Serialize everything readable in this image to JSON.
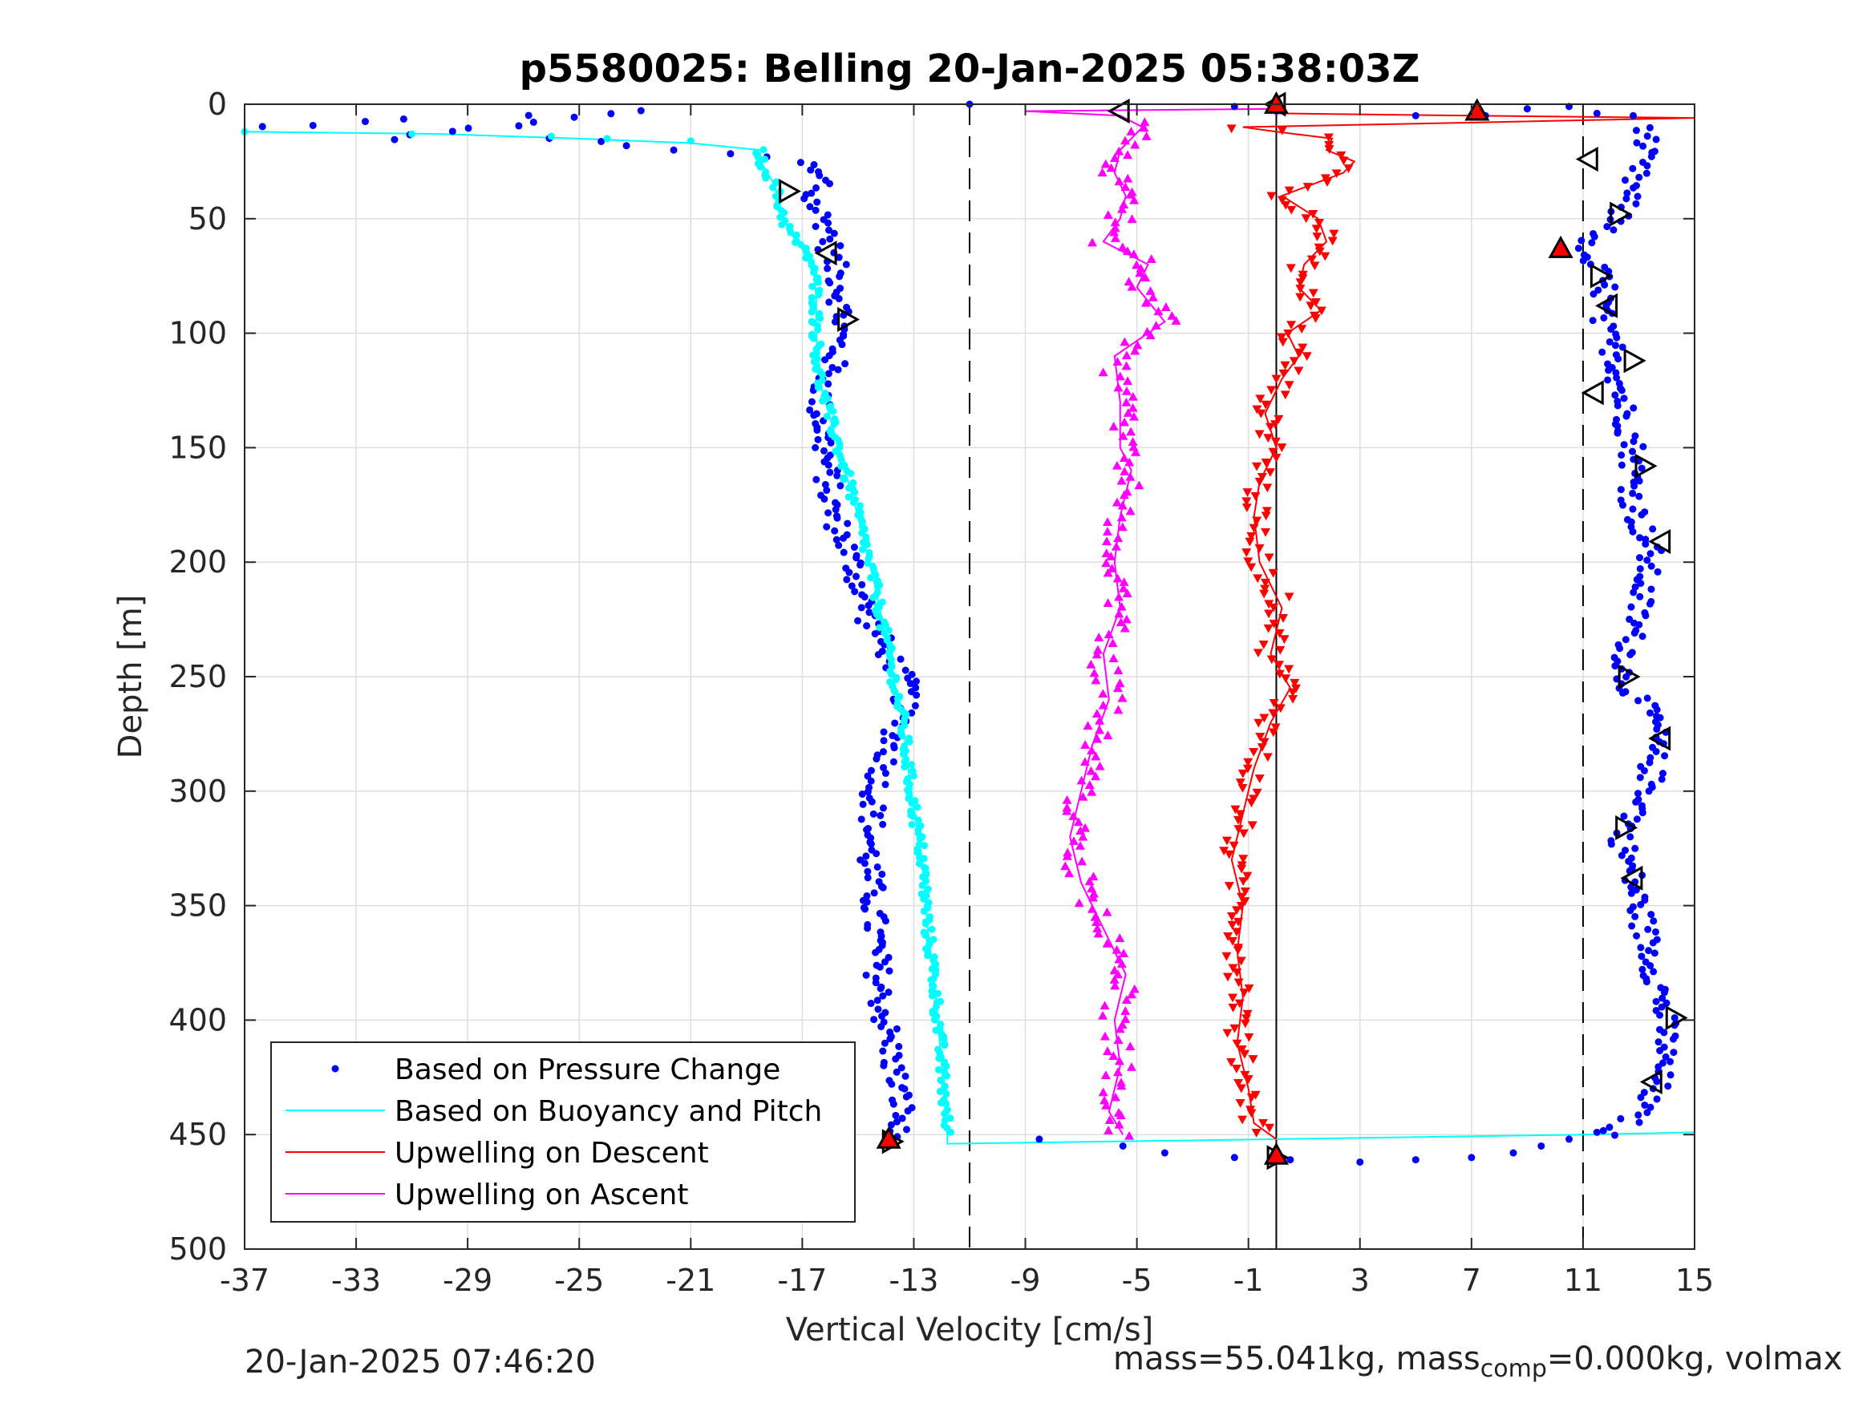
{
  "chart_data": {
    "type": "scatter",
    "title": "p5580025: Belling 20-Jan-2025 05:38:03Z",
    "xlabel": "Vertical Velocity [cm/s]",
    "ylabel": "Depth [m]",
    "xlim": [
      -37,
      15
    ],
    "ylim": [
      500,
      0
    ],
    "y_reversed": true,
    "grid": true,
    "x_ticks": [
      -37,
      -33,
      -29,
      -25,
      -21,
      -17,
      -13,
      -9,
      -5,
      -1,
      3,
      7,
      11,
      15
    ],
    "y_ticks": [
      0,
      50,
      100,
      150,
      200,
      250,
      300,
      350,
      400,
      450,
      500
    ],
    "legend_location": "bottom-left",
    "legend": [
      {
        "label": "Based on Pressure Change",
        "color": "#0000ff",
        "marker": "dot"
      },
      {
        "label": "Based on Buoyancy and Pitch",
        "color": "#00ffff",
        "marker": "line"
      },
      {
        "label": "Upwelling on Descent",
        "color": "#ff0000",
        "marker": "line"
      },
      {
        "label": "Upwelling on Ascent",
        "color": "#ff00ff",
        "marker": "line"
      }
    ],
    "reference_lines": [
      {
        "x": -11,
        "style": "dashed"
      },
      {
        "x": 11,
        "style": "dashed"
      },
      {
        "x": 0,
        "style": "solid"
      }
    ],
    "series": [
      {
        "name": "Based on Pressure Change",
        "color": "#0000ff",
        "profiles": [
          {
            "depth": [
              10,
              6,
              3,
              15,
              15,
              25,
              35,
              40,
              55,
              65,
              80,
              95,
              110,
              130,
              150,
              175,
              200,
              225,
              255,
              280,
              300,
              330,
              360,
              390,
              415,
              440,
              452
            ],
            "velocity": [
              -36.5,
              -31,
              -23,
              -32,
              -26,
              -17,
              -16.2,
              -16.8,
              -16,
              -16,
              -15.6,
              -15.6,
              -15.8,
              -16.4,
              -16.2,
              -16,
              -15.2,
              -14.6,
              -13.2,
              -13.8,
              -14.4,
              -14.6,
              -14.4,
              -14.2,
              -13.8,
              -13.4,
              -13.8
            ]
          },
          {
            "depth": [
              452,
              455,
              458,
              460,
              461,
              462,
              461,
              460,
              458,
              455,
              452,
              449
            ],
            "velocity": [
              -8.5,
              -5.5,
              -4,
              -1.5,
              0.5,
              3,
              5,
              7,
              8.5,
              9.5,
              10.5,
              11.5
            ]
          },
          {
            "depth": [
              0,
              1,
              3,
              5,
              5,
              2,
              1,
              4,
              5
            ],
            "velocity": [
              -11,
              -1.5,
              0,
              5,
              7.5,
              9,
              10.5,
              11.5,
              12.8
            ]
          },
          {
            "depth": [
              10,
              25,
              40,
              55,
              64,
              70,
              80,
              95,
              110,
              130,
              150,
              175,
              195,
              220,
              250,
              270,
              300,
              320,
              340,
              360,
              390,
              410,
              430,
              445,
              452
            ],
            "velocity": [
              13.4,
              13,
              12.6,
              12,
              10.4,
              11.4,
              11.8,
              11.6,
              12.2,
              12.4,
              12.8,
              12.8,
              13.4,
              13,
              12.4,
              13.6,
              13.4,
              12.4,
              12.8,
              13.2,
              13.8,
              14,
              13.6,
              12.6,
              11.5
            ]
          }
        ]
      },
      {
        "name": "Based on Buoyancy and Pitch",
        "color": "#00ffff",
        "depth": [
          12,
          13,
          15,
          17,
          20,
          25,
          35,
          45,
          55,
          70,
          85,
          100,
          120,
          150,
          180,
          210,
          240,
          270,
          300,
          330,
          360,
          390,
          420,
          450,
          454,
          452,
          450,
          449
        ],
        "velocity": [
          -37,
          -30,
          -25,
          -21,
          -18.5,
          -18.5,
          -18,
          -17.8,
          -17.5,
          -16.6,
          -16.5,
          -16.5,
          -16.4,
          -15.7,
          -15,
          -14.4,
          -13.9,
          -13.4,
          -13.1,
          -12.7,
          -12.5,
          -12.2,
          -12,
          -11.8,
          -11.8,
          0,
          11,
          15
        ]
      },
      {
        "name": "Upwelling on Descent",
        "color": "#ff0000",
        "depth": [
          4,
          5,
          6,
          8,
          10,
          12,
          15,
          20,
          25,
          30,
          40,
          50,
          60,
          70,
          80,
          90,
          100,
          110,
          120,
          135,
          150,
          165,
          180,
          200,
          220,
          240,
          255,
          270,
          290,
          310,
          330,
          350,
          370,
          390,
          410,
          430,
          445,
          452
        ],
        "velocity": [
          0,
          7,
          15,
          7,
          -1.2,
          0,
          2,
          1.8,
          2.8,
          2.4,
          0.2,
          1.5,
          1.8,
          1,
          0.8,
          1.6,
          0.4,
          0.8,
          0.2,
          -0.4,
          0,
          -0.6,
          -0.8,
          -0.6,
          0.2,
          -0.2,
          0.5,
          -0.2,
          -0.8,
          -1.2,
          -1.6,
          -1.2,
          -1.4,
          -1.2,
          -1.4,
          -1,
          -0.8,
          0
        ]
      },
      {
        "name": "Upwelling on Ascent",
        "color": "#ff00ff",
        "depth": [
          450,
          440,
          420,
          400,
          380,
          360,
          340,
          320,
          300,
          280,
          260,
          240,
          220,
          200,
          180,
          160,
          150,
          130,
          110,
          95,
          80,
          70,
          60,
          50,
          40,
          30,
          20,
          10,
          5,
          3,
          2
        ],
        "velocity": [
          -5.5,
          -6,
          -5.6,
          -5.8,
          -5.4,
          -6.2,
          -7,
          -7.4,
          -7,
          -6.6,
          -6,
          -6.2,
          -5.6,
          -5.8,
          -5.6,
          -5.2,
          -5.6,
          -5.6,
          -5.8,
          -4,
          -5,
          -4.6,
          -6.2,
          -5.6,
          -5.4,
          -5.8,
          -5.6,
          -4.8,
          -5.6,
          -9,
          0
        ]
      },
      {
        "name": "",
        "color": "#000000",
        "marker": "open-triangle",
        "points": [
          {
            "v": -5.6,
            "d": 3,
            "dir": "left"
          },
          {
            "v": 0,
            "d": 0,
            "dir": "left"
          },
          {
            "v": -17.5,
            "d": 38,
            "dir": "right"
          },
          {
            "v": -16.1,
            "d": 65,
            "dir": "left"
          },
          {
            "v": -15.4,
            "d": 94,
            "dir": "right"
          },
          {
            "v": 11.2,
            "d": 24,
            "dir": "left"
          },
          {
            "v": 12.3,
            "d": 48,
            "dir": "right"
          },
          {
            "v": 11.6,
            "d": 75,
            "dir": "right"
          },
          {
            "v": 11.9,
            "d": 88,
            "dir": "left"
          },
          {
            "v": 12.8,
            "d": 112,
            "dir": "right"
          },
          {
            "v": 11.4,
            "d": 126,
            "dir": "left"
          },
          {
            "v": 13.2,
            "d": 158,
            "dir": "right"
          },
          {
            "v": 13.8,
            "d": 191,
            "dir": "left"
          },
          {
            "v": 12.6,
            "d": 250,
            "dir": "right"
          },
          {
            "v": 13.8,
            "d": 277,
            "dir": "left"
          },
          {
            "v": 12.5,
            "d": 316,
            "dir": "right"
          },
          {
            "v": 12.8,
            "d": 338,
            "dir": "left"
          },
          {
            "v": 14.3,
            "d": 399,
            "dir": "right"
          },
          {
            "v": 13.5,
            "d": 427,
            "dir": "left"
          },
          {
            "v": -13.8,
            "d": 453,
            "dir": "right"
          },
          {
            "v": 0,
            "d": 460,
            "dir": "right"
          }
        ]
      },
      {
        "name": "",
        "color": "#ff0000",
        "marker": "filled-triangle",
        "points": [
          {
            "v": 7.2,
            "d": 3
          },
          {
            "v": 0,
            "d": 0
          },
          {
            "v": 10.2,
            "d": 63
          },
          {
            "v": -13.9,
            "d": 452
          },
          {
            "v": 0,
            "d": 459
          }
        ]
      }
    ]
  },
  "footer": {
    "timestamp": "20-Jan-2025 07:46:20",
    "mass_prefix": "mass=55.041kg, mass",
    "mass_sub": "comp",
    "mass_suffix": "=0.000kg, volmax"
  }
}
